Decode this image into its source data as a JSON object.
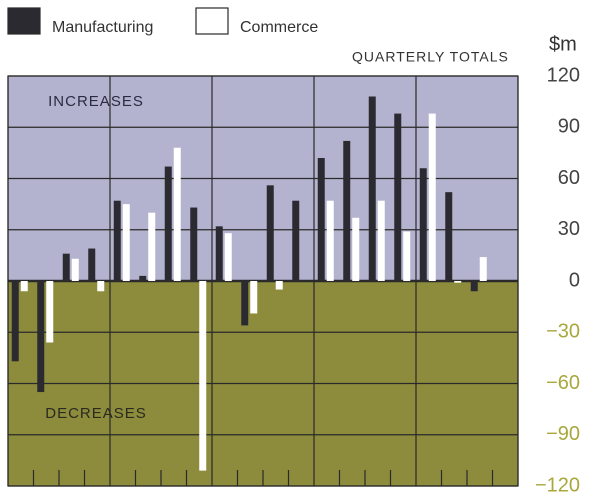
{
  "chart_data": {
    "type": "bar",
    "title": "QUARTERLY TOTALS",
    "y_axis_label": "$m",
    "annotations": [
      "INCREASES",
      "DECREASES"
    ],
    "categories": [
      null,
      null,
      null,
      null,
      null,
      null,
      null,
      null,
      null,
      null,
      null,
      null,
      null,
      null,
      null,
      null,
      null,
      null,
      null,
      null
    ],
    "series": [
      {
        "name": "Manufacturing",
        "color": "#2b2a30",
        "values": [
          -47,
          -65,
          16,
          19,
          47,
          3,
          67,
          43,
          32,
          -26,
          56,
          47,
          72,
          82,
          108,
          98,
          66,
          52,
          -6,
          null
        ]
      },
      {
        "name": "Commerce",
        "color": "#ffffff",
        "values": [
          -6,
          -36,
          13,
          -6,
          45,
          40,
          78,
          -111,
          28,
          -19,
          -5,
          0,
          47,
          37,
          47,
          29,
          98,
          -1,
          14,
          null
        ]
      }
    ],
    "ylim": [
      -120,
      120
    ],
    "yticks": [
      120,
      90,
      60,
      30,
      0,
      {
        "value": -30,
        "label": "−30"
      },
      {
        "value": -60,
        "label": "−60"
      },
      {
        "value": -90,
        "label": "−90"
      },
      {
        "value": -120,
        "label": "−120"
      }
    ],
    "grid": true,
    "legend": "top-left",
    "increase_color": "#b4b3cf",
    "decrease_color": "#8c8c3c"
  }
}
